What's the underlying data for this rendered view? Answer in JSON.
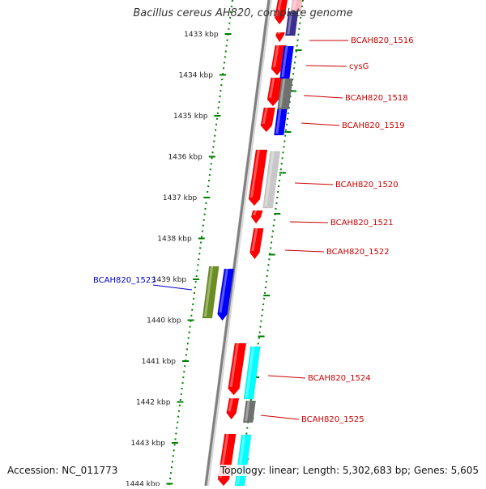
{
  "title": "Bacillus cereus AH820, complete genome",
  "accession": "Accession: NC_011773",
  "summary": "Topology: linear; Length: 5,302,683 bp; Genes: 5,605",
  "ruler": {
    "unit": "kbp",
    "ticks": [
      "1433 kbp",
      "1434 kbp",
      "1435 kbp",
      "1436 kbp",
      "1437 kbp",
      "1438 kbp",
      "1439 kbp",
      "1440 kbp",
      "1441 kbp",
      "1442 kbp",
      "1443 kbp",
      "1444 kbp"
    ]
  },
  "colors": {
    "backbone": "#808080",
    "ruler": "#008000",
    "label_red": "#cc0000",
    "label_blue": "#0000cc",
    "cds_red": "#ff0000",
    "blue": "#0000ff",
    "gray": "#707070",
    "lightgray": "#c8c8c8",
    "cyan": "#00ffff",
    "olive": "#6b8e23",
    "purple": "#3b2f8f",
    "pink": "#ffb6c1"
  },
  "gene_labels": [
    {
      "text": "BCAH820_1516",
      "color": "red"
    },
    {
      "text": "cysG",
      "color": "red"
    },
    {
      "text": "BCAH820_1518",
      "color": "red"
    },
    {
      "text": "BCAH820_1519",
      "color": "red"
    },
    {
      "text": "BCAH820_1520",
      "color": "red"
    },
    {
      "text": "BCAH820_1521",
      "color": "red"
    },
    {
      "text": "BCAH820_1522",
      "color": "red"
    },
    {
      "text": "BCAH820_1523",
      "color": "blue"
    },
    {
      "text": "BCAH820_1524",
      "color": "red"
    },
    {
      "text": "BCAH820_1525",
      "color": "red"
    }
  ]
}
